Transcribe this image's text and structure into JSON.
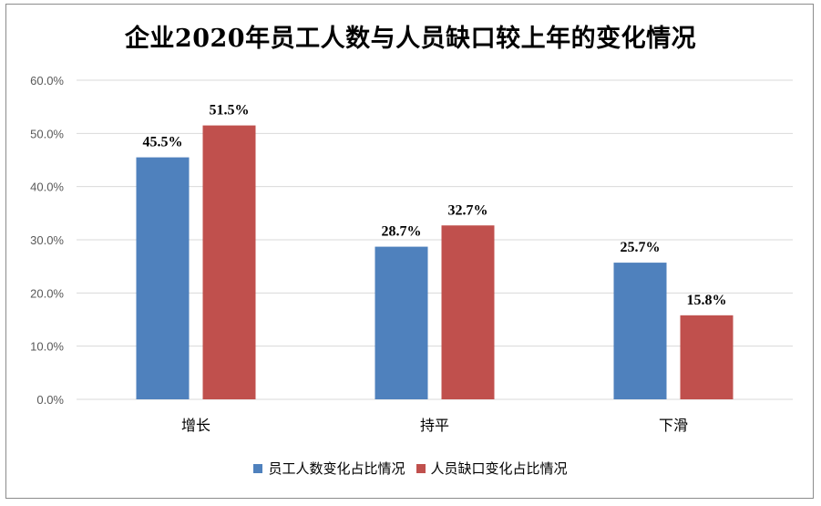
{
  "chart_data": {
    "type": "bar",
    "title": "企业2020年员工人数与人员缺口较上年的变化情况",
    "categories": [
      "增长",
      "持平",
      "下滑"
    ],
    "series": [
      {
        "name": "员工人数变化占比情况",
        "values": [
          45.5,
          28.7,
          25.7
        ],
        "labels": [
          "45.5%",
          "28.7%",
          "25.7%"
        ],
        "color": "#4f81bd"
      },
      {
        "name": "人员缺口变化占比情况",
        "values": [
          51.5,
          32.7,
          15.8
        ],
        "labels": [
          "51.5%",
          "32.7%",
          "15.8%"
        ],
        "color": "#c0504d"
      }
    ],
    "ylim": [
      0,
      60
    ],
    "yticks": [
      "0.0%",
      "10.0%",
      "20.0%",
      "30.0%",
      "40.0%",
      "50.0%",
      "60.0%"
    ],
    "grid": true,
    "legend": "bottom",
    "xlabel": "",
    "ylabel": ""
  }
}
